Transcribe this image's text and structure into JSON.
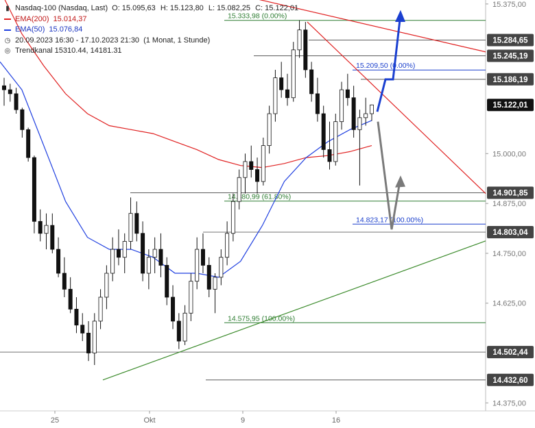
{
  "legend": {
    "instrument": "Nasdaq-100 (Nasdaq, Last)",
    "ohlc": {
      "o": "O: 15.095,63",
      "h": "H: 15.123,80",
      "l": "L: 15.082,25",
      "c": "C: 15.122,01"
    },
    "ema200": {
      "label": "EMA(200)",
      "value": "15.014,37"
    },
    "ema50": {
      "label": "EMA(50)",
      "value": "15.076,84"
    },
    "period": "20.09.2023 16:30 - 17.10.2023 21:30",
    "period_note": "(1 Monat, 1 Stunde)",
    "trend": "Trendkanal  15310.44, 14181.31"
  },
  "colors": {
    "candle": "#111111",
    "ema200": "#e02020",
    "ema50": "#2040e0",
    "resistance": "#e02020",
    "support": "#3a8a2a",
    "fib_blue": "#1a3fcc",
    "fib_green": "#2e7d32",
    "level": "#444444",
    "projection_up": "#1a3fd0",
    "projection_down": "#7a7a7a"
  },
  "chart_data": {
    "type": "candlestick",
    "y_range": [
      14355,
      15385
    ],
    "y_ticks": [
      {
        "v": 15375,
        "label": "15.375,00"
      },
      {
        "v": 15000,
        "label": "15.000,00"
      },
      {
        "v": 14875,
        "label": "14.875,00"
      },
      {
        "v": 14750,
        "label": "14.750,00"
      },
      {
        "v": 14625,
        "label": "14.625,00"
      },
      {
        "v": 14375,
        "label": "14.375,00"
      }
    ],
    "x_ticks": [
      "25",
      "Okt",
      "9",
      "16"
    ],
    "price_boxes": [
      {
        "v": 15284.65,
        "label": "15.284,65",
        "style": "level"
      },
      {
        "v": 15245.19,
        "label": "15.245,19",
        "style": "level"
      },
      {
        "v": 15186.19,
        "label": "15.186,19",
        "style": "level"
      },
      {
        "v": 15122.01,
        "label": "15.122,01",
        "style": "last"
      },
      {
        "v": 14901.85,
        "label": "14.901,85",
        "style": "level"
      },
      {
        "v": 14803.04,
        "label": "14.803,04",
        "style": "level"
      },
      {
        "v": 14502.44,
        "label": "14.502,44",
        "style": "level"
      },
      {
        "v": 14432.6,
        "label": "14.432,60",
        "style": "level"
      }
    ],
    "fib_labels": [
      {
        "v": 15333.98,
        "label": "15.333,98 (0.00%)",
        "color": "green"
      },
      {
        "v": 15209.5,
        "label": "15.209,50 (0.00%)",
        "color": "blue"
      },
      {
        "v": 14880.99,
        "label": "14.880,99 (61.80%)",
        "color": "green"
      },
      {
        "v": 14823.17,
        "label": "14.823,17 (100.00%)",
        "color": "blue"
      },
      {
        "v": 14575.95,
        "label": "14.575,95 (100.00%)",
        "color": "green"
      }
    ],
    "ema200": [
      15410,
      15300,
      15220,
      15150,
      15100,
      15070,
      15060,
      15050,
      15030,
      15010,
      14985,
      14970,
      14965,
      14975,
      14990,
      14995,
      15005,
      15020
    ],
    "ema50": [
      15230,
      15160,
      15020,
      14880,
      14790,
      14760,
      14760,
      14740,
      14700,
      14700,
      14690,
      14730,
      14820,
      14930,
      14990,
      15030,
      15060,
      15083
    ],
    "candles": [
      [
        15170,
        15190,
        15120,
        15160
      ],
      [
        15160,
        15175,
        15130,
        15150
      ],
      [
        15150,
        15165,
        15100,
        15110
      ],
      [
        15110,
        15115,
        15040,
        15060
      ],
      [
        15060,
        15065,
        14980,
        14990
      ],
      [
        14990,
        14995,
        14800,
        14830
      ],
      [
        14830,
        14860,
        14780,
        14800
      ],
      [
        14800,
        14850,
        14760,
        14820
      ],
      [
        14820,
        14850,
        14750,
        14760
      ],
      [
        14760,
        14790,
        14690,
        14700
      ],
      [
        14700,
        14740,
        14640,
        14660
      ],
      [
        14660,
        14690,
        14600,
        14610
      ],
      [
        14610,
        14640,
        14550,
        14570
      ],
      [
        14570,
        14600,
        14530,
        14550
      ],
      [
        14550,
        14580,
        14480,
        14500
      ],
      [
        14500,
        14600,
        14470,
        14580
      ],
      [
        14580,
        14660,
        14560,
        14640
      ],
      [
        14640,
        14720,
        14610,
        14700
      ],
      [
        14700,
        14790,
        14680,
        14760
      ],
      [
        14760,
        14810,
        14720,
        14740
      ],
      [
        14740,
        14800,
        14700,
        14780
      ],
      [
        14780,
        14890,
        14760,
        14850
      ],
      [
        14850,
        14880,
        14780,
        14800
      ],
      [
        14800,
        14830,
        14680,
        14700
      ],
      [
        14700,
        14760,
        14660,
        14740
      ],
      [
        14740,
        14790,
        14700,
        14760
      ],
      [
        14760,
        14800,
        14690,
        14720
      ],
      [
        14720,
        14740,
        14620,
        14640
      ],
      [
        14640,
        14670,
        14560,
        14580
      ],
      [
        14580,
        14600,
        14510,
        14530
      ],
      [
        14530,
        14620,
        14520,
        14600
      ],
      [
        14600,
        14700,
        14580,
        14680
      ],
      [
        14680,
        14790,
        14660,
        14760
      ],
      [
        14760,
        14800,
        14700,
        14720
      ],
      [
        14720,
        14740,
        14640,
        14660
      ],
      [
        14660,
        14700,
        14600,
        14690
      ],
      [
        14690,
        14760,
        14670,
        14740
      ],
      [
        14740,
        14830,
        14720,
        14800
      ],
      [
        14800,
        14900,
        14780,
        14880
      ],
      [
        14880,
        14960,
        14860,
        14940
      ],
      [
        14940,
        15000,
        14900,
        14980
      ],
      [
        14980,
        15020,
        14940,
        14960
      ],
      [
        14960,
        14990,
        14900,
        14930
      ],
      [
        14930,
        15040,
        14920,
        15020
      ],
      [
        15020,
        15120,
        15000,
        15100
      ],
      [
        15100,
        15210,
        15080,
        15190
      ],
      [
        15190,
        15230,
        15140,
        15160
      ],
      [
        15160,
        15200,
        15120,
        15140
      ],
      [
        15140,
        15280,
        15130,
        15260
      ],
      [
        15260,
        15334,
        15240,
        15310
      ],
      [
        15310,
        15330,
        15190,
        15210
      ],
      [
        15210,
        15230,
        15130,
        15150
      ],
      [
        15150,
        15190,
        15080,
        15100
      ],
      [
        15100,
        15120,
        14990,
        15010
      ],
      [
        15010,
        15080,
        14960,
        14980
      ],
      [
        14980,
        15100,
        14970,
        15080
      ],
      [
        15080,
        15180,
        15060,
        15160
      ],
      [
        15160,
        15200,
        15120,
        15140
      ],
      [
        15140,
        15170,
        15040,
        15060
      ],
      [
        15060,
        15110,
        14920,
        15090
      ],
      [
        15090,
        15140,
        15070,
        15100
      ],
      [
        15100,
        15123,
        15082,
        15122
      ]
    ],
    "annotations": [
      "Widerstandslinie (rot) fallend",
      "Unterstützungslinie (grün) steigend",
      "Projektion aufwärts (blau)",
      "Projektion abwärts (grau)"
    ]
  }
}
